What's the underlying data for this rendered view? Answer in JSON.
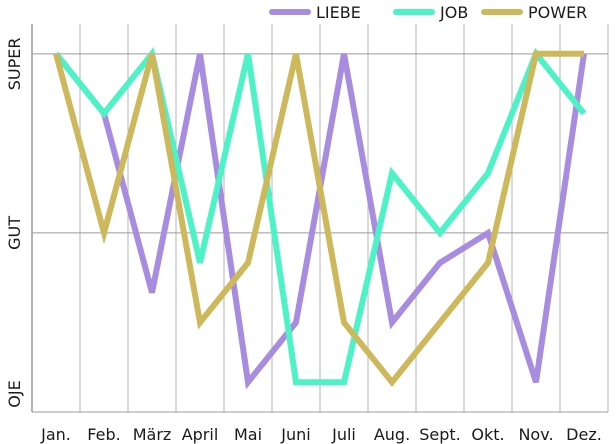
{
  "chart_data": {
    "type": "line",
    "title": "",
    "xlabel": "",
    "ylabel": "",
    "categories": [
      "Jan.",
      "Feb.",
      "März",
      "April",
      "Mai",
      "Juni",
      "Juli",
      "Aug.",
      "Sept.",
      "Okt.",
      "Nov.",
      "Dez."
    ],
    "y_ticks": [
      {
        "label": "OJE",
        "value": 0
      },
      {
        "label": "GUT",
        "value": 3
      },
      {
        "label": "SUPER",
        "value": 6
      }
    ],
    "ylim": [
      0,
      6.5
    ],
    "grid": true,
    "legend_position": "top-right",
    "series": [
      {
        "name": "LIEBE",
        "color": "#a88ce0",
        "values": [
          6,
          5,
          2,
          6,
          0.5,
          1.5,
          6,
          1.5,
          2.5,
          3.0,
          0.5,
          6
        ]
      },
      {
        "name": "JOB",
        "color": "#4df2c6",
        "values": [
          6,
          5,
          6,
          2.5,
          6,
          0.5,
          0.5,
          4,
          3,
          4,
          6,
          5
        ]
      },
      {
        "name": "POWER",
        "color": "#cdb85c",
        "values": [
          6,
          3,
          6,
          1.5,
          2.5,
          6,
          1.5,
          0.5,
          1.5,
          2.5,
          6,
          6
        ]
      }
    ]
  }
}
